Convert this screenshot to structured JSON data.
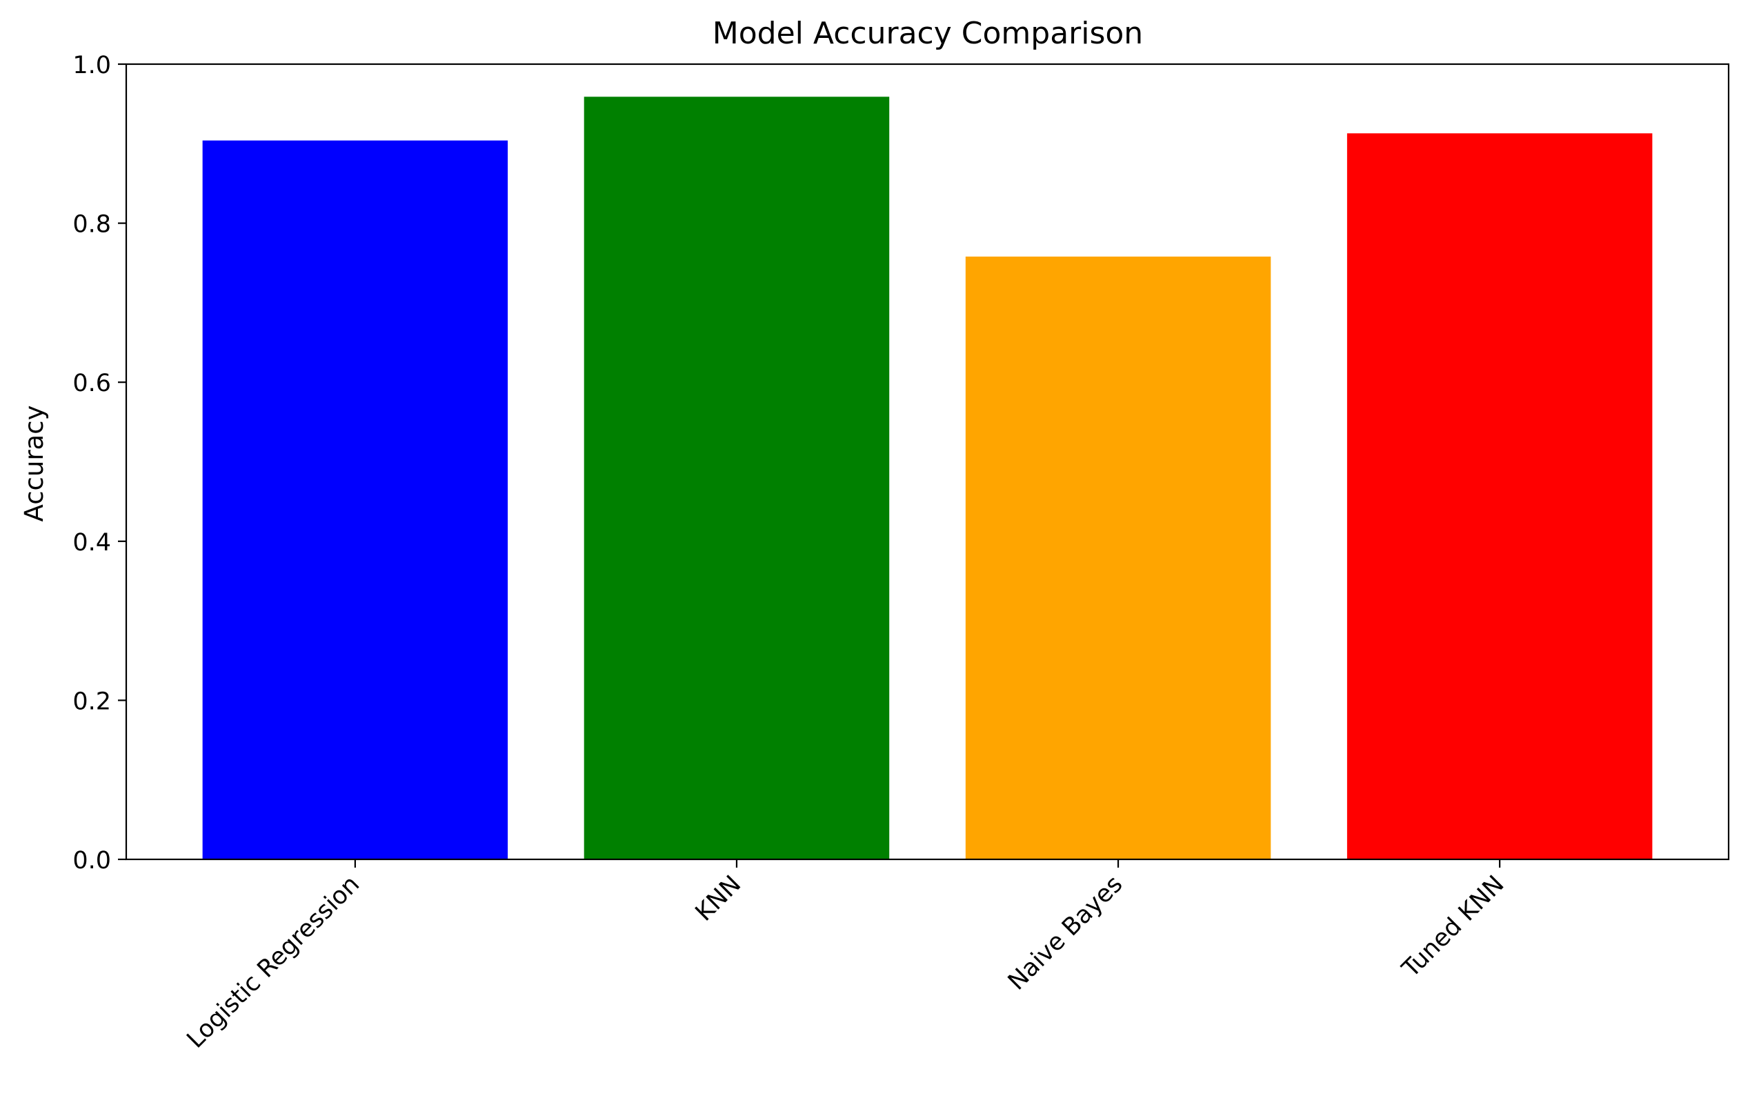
{
  "chart_data": {
    "type": "bar",
    "title": "Model Accuracy Comparison",
    "xlabel": "",
    "ylabel": "Accuracy",
    "categories": [
      "Logistic Regression",
      "KNN",
      "Naive Bayes",
      "Tuned KNN"
    ],
    "values": [
      0.904,
      0.959,
      0.758,
      0.913
    ],
    "colors": [
      "#0000ff",
      "#008000",
      "#ffa500",
      "#ff0000"
    ],
    "ylim": [
      0,
      1.0
    ],
    "yticks": [
      0.0,
      0.2,
      0.4,
      0.6,
      0.8,
      1.0
    ],
    "ytick_labels": [
      "0.0",
      "0.2",
      "0.4",
      "0.6",
      "0.8",
      "1.0"
    ],
    "xtick_rotation_deg": 45,
    "grid": false,
    "legend": "none"
  }
}
